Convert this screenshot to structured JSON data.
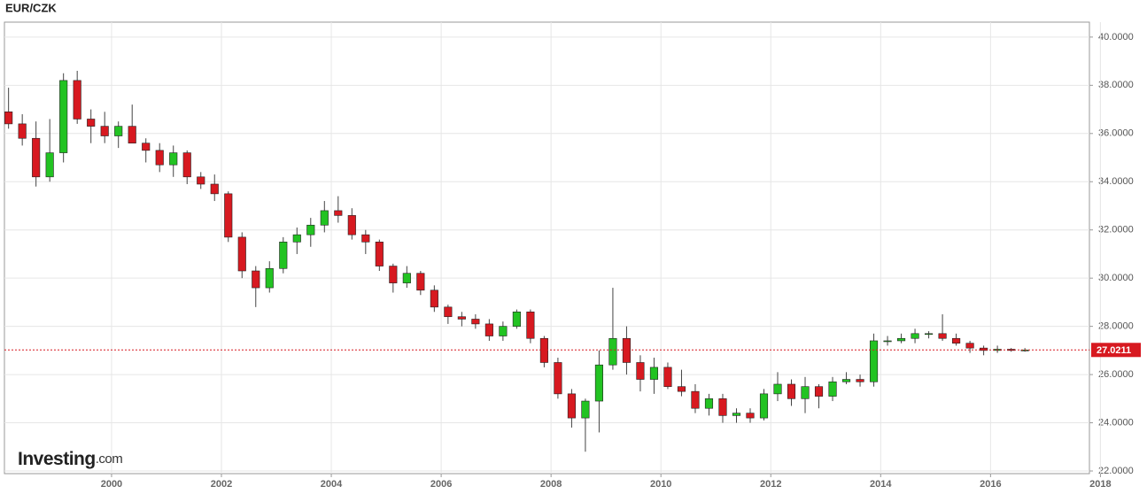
{
  "chart_data": {
    "type": "candlestick",
    "title": "EUR/CZK",
    "logo": [
      "Investing",
      ".com"
    ],
    "xlim": [
      1998.05,
      2017.8
    ],
    "xticks": [
      2000,
      2002,
      2004,
      2006,
      2008,
      2010,
      2012,
      2014,
      2016,
      2018
    ],
    "ylim": [
      21.89,
      40.62
    ],
    "yticks": [
      {
        "value": 22,
        "label": "22.0000"
      },
      {
        "value": 24,
        "label": "24.0000"
      },
      {
        "value": 26,
        "label": "26.0000"
      },
      {
        "value": 28,
        "label": "28.0000"
      },
      {
        "value": 30,
        "label": "30.0000"
      },
      {
        "value": 32,
        "label": "32.0000"
      },
      {
        "value": 34,
        "label": "34.0000"
      },
      {
        "value": 36,
        "label": "36.0000"
      },
      {
        "value": 38,
        "label": "38.0000"
      },
      {
        "value": 40,
        "label": "40.0000"
      }
    ],
    "grid": true,
    "up_color": "#22c322",
    "down_color": "#d71920",
    "last_price": {
      "value": 27.0211,
      "label": "27.0211",
      "color": "#d71920"
    },
    "x": [
      1998.125,
      1998.375,
      1998.625,
      1998.875,
      1999.125,
      1999.375,
      1999.625,
      1999.875,
      2000.125,
      2000.375,
      2000.625,
      2000.875,
      2001.125,
      2001.375,
      2001.625,
      2001.875,
      2002.125,
      2002.375,
      2002.625,
      2002.875,
      2003.125,
      2003.375,
      2003.625,
      2003.875,
      2004.125,
      2004.375,
      2004.625,
      2004.875,
      2005.125,
      2005.375,
      2005.625,
      2005.875,
      2006.125,
      2006.375,
      2006.625,
      2006.875,
      2007.125,
      2007.375,
      2007.625,
      2007.875,
      2008.125,
      2008.375,
      2008.625,
      2008.875,
      2009.125,
      2009.375,
      2009.625,
      2009.875,
      2010.125,
      2010.375,
      2010.625,
      2010.875,
      2011.125,
      2011.375,
      2011.625,
      2011.875,
      2012.125,
      2012.375,
      2012.625,
      2012.875,
      2013.125,
      2013.375,
      2013.625,
      2013.875,
      2014.125,
      2014.375,
      2014.625,
      2014.875,
      2015.125,
      2015.375,
      2015.625,
      2015.875,
      2016.125,
      2016.375,
      2016.625
    ],
    "open": [
      36.9,
      36.4,
      35.8,
      34.2,
      35.2,
      38.2,
      36.6,
      36.3,
      35.9,
      36.3,
      35.6,
      35.3,
      34.7,
      35.2,
      34.2,
      33.9,
      33.5,
      31.7,
      30.3,
      29.6,
      30.4,
      31.5,
      31.8,
      32.2,
      32.8,
      32.6,
      31.8,
      31.5,
      30.5,
      29.8,
      30.2,
      29.5,
      28.8,
      28.4,
      28.3,
      28.1,
      27.6,
      28.0,
      28.6,
      27.5,
      26.5,
      25.2,
      24.2,
      24.9,
      26.4,
      27.5,
      26.5,
      25.8,
      26.3,
      25.5,
      25.3,
      24.6,
      25.0,
      24.3,
      24.4,
      24.2,
      25.2,
      25.6,
      25.0,
      25.5,
      25.1,
      25.7,
      25.8,
      25.7,
      27.4,
      27.4,
      27.5,
      27.7,
      27.7,
      27.5,
      27.3,
      27.1,
      27.0,
      27.05,
      27.0
    ],
    "high": [
      37.9,
      36.8,
      36.5,
      36.6,
      38.5,
      38.6,
      37.0,
      36.9,
      36.5,
      37.2,
      35.8,
      35.6,
      35.5,
      35.3,
      34.4,
      34.3,
      33.6,
      31.9,
      30.5,
      30.7,
      31.7,
      32.1,
      32.5,
      33.2,
      33.4,
      32.9,
      32.0,
      31.6,
      30.6,
      30.5,
      30.3,
      29.7,
      28.9,
      28.6,
      28.5,
      28.3,
      28.2,
      28.7,
      28.7,
      27.6,
      26.7,
      25.4,
      25.0,
      27.0,
      29.6,
      28.0,
      26.8,
      26.7,
      26.5,
      26.2,
      25.6,
      25.2,
      25.2,
      24.6,
      24.6,
      25.4,
      26.1,
      25.8,
      25.9,
      25.6,
      25.9,
      26.1,
      26.0,
      27.7,
      27.6,
      27.7,
      27.9,
      27.8,
      28.5,
      27.7,
      27.4,
      27.2,
      27.2,
      27.1,
      27.1
    ],
    "low": [
      36.2,
      35.5,
      33.8,
      34.0,
      34.8,
      36.4,
      35.6,
      35.6,
      35.4,
      35.7,
      34.8,
      34.4,
      34.2,
      33.9,
      33.7,
      33.2,
      31.5,
      30.0,
      28.8,
      29.4,
      30.2,
      31.0,
      31.3,
      31.9,
      32.3,
      31.6,
      31.0,
      30.3,
      29.4,
      29.6,
      29.3,
      28.6,
      28.1,
      28.0,
      27.9,
      27.4,
      27.4,
      27.9,
      27.3,
      26.3,
      25.0,
      23.8,
      22.8,
      23.6,
      26.2,
      26.0,
      25.3,
      25.2,
      25.4,
      25.1,
      24.4,
      24.3,
      24.0,
      24.0,
      24.0,
      24.1,
      24.9,
      24.7,
      24.4,
      24.6,
      24.9,
      25.6,
      25.5,
      25.5,
      27.2,
      27.3,
      27.3,
      27.5,
      27.4,
      27.2,
      26.9,
      26.8,
      26.9,
      26.95,
      26.95
    ],
    "close": [
      36.4,
      35.8,
      34.2,
      35.2,
      38.2,
      36.6,
      36.3,
      35.9,
      36.3,
      35.6,
      35.3,
      34.7,
      35.2,
      34.2,
      33.9,
      33.5,
      31.7,
      30.3,
      29.6,
      30.4,
      31.5,
      31.8,
      32.2,
      32.8,
      32.6,
      31.8,
      31.5,
      30.5,
      29.8,
      30.2,
      29.5,
      28.8,
      28.4,
      28.3,
      28.1,
      27.6,
      28.0,
      28.6,
      27.5,
      26.5,
      25.2,
      24.2,
      24.9,
      26.4,
      27.5,
      26.5,
      25.8,
      26.3,
      25.5,
      25.3,
      24.6,
      25.0,
      24.3,
      24.4,
      24.2,
      25.2,
      25.6,
      25.0,
      25.5,
      25.1,
      25.7,
      25.8,
      25.7,
      27.4,
      27.4,
      27.5,
      27.7,
      27.7,
      27.5,
      27.3,
      27.1,
      27.0,
      27.05,
      27.0,
      27.02
    ]
  }
}
